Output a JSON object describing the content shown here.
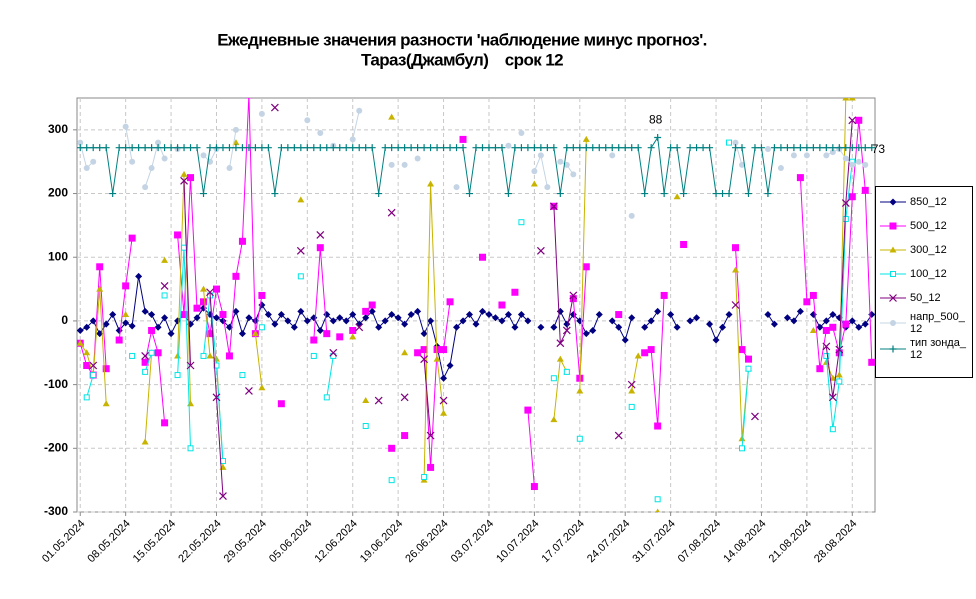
{
  "chart_data": {
    "type": "line",
    "title": "Ежедневные значения разности 'наблюдение минус прогноз'.",
    "subtitle": "Тараз(Джамбул)    срок 12",
    "categories": [
      "01.05.2024",
      null,
      null,
      null,
      null,
      null,
      null,
      "08.05.2024",
      null,
      null,
      null,
      null,
      null,
      null,
      "15.05.2024",
      null,
      null,
      null,
      null,
      null,
      null,
      "22.05.2024",
      null,
      null,
      null,
      null,
      null,
      null,
      "29.05.2024",
      null,
      null,
      null,
      null,
      null,
      null,
      "05.06.2024",
      null,
      null,
      null,
      null,
      null,
      null,
      "12.06.2024",
      null,
      null,
      null,
      null,
      null,
      null,
      "19.06.2024",
      null,
      null,
      null,
      null,
      null,
      null,
      "26.06.2024",
      null,
      null,
      null,
      null,
      null,
      null,
      "03.07.2024",
      null,
      null,
      null,
      null,
      null,
      null,
      "10.07.2024",
      null,
      null,
      null,
      null,
      null,
      null,
      "17.07.2024",
      null,
      null,
      null,
      null,
      null,
      null,
      "24.07.2024",
      null,
      null,
      null,
      null,
      null,
      null,
      "31.07.2024",
      null,
      null,
      null,
      null,
      null,
      null,
      "07.08.2024",
      null,
      null,
      null,
      null,
      null,
      null,
      "14.08.2024",
      null,
      null,
      null,
      null,
      null,
      null,
      "21.08.2024",
      null,
      null,
      null,
      null,
      null,
      null,
      "28.08.2024",
      null,
      null,
      null
    ],
    "ylim": [
      -300,
      350
    ],
    "yticks": [
      -300,
      -200,
      -100,
      0,
      100,
      200,
      300
    ],
    "grid": true,
    "annotations": [
      "88",
      "73"
    ],
    "series": [
      {
        "name": "850_12",
        "color": "#000080",
        "marker": "diamond",
        "values": [
          -15,
          -10,
          0,
          -20,
          -5,
          10,
          -15,
          -3,
          -8,
          70,
          15,
          10,
          -10,
          5,
          -20,
          0,
          10,
          -5,
          5,
          20,
          10,
          5,
          0,
          -10,
          15,
          -20,
          5,
          0,
          25,
          10,
          -5,
          10,
          0,
          -10,
          15,
          0,
          5,
          -15,
          10,
          0,
          5,
          0,
          10,
          -5,
          5,
          15,
          -10,
          0,
          10,
          5,
          -5,
          10,
          15,
          -20,
          0,
          -40,
          -90,
          -70,
          -10,
          0,
          10,
          -5,
          15,
          10,
          5,
          0,
          10,
          -10,
          10,
          0,
          null,
          -10,
          null,
          -10,
          15,
          -5,
          10,
          0,
          -20,
          -15,
          10,
          null,
          0,
          -10,
          -30,
          5,
          null,
          -10,
          0,
          15,
          null,
          10,
          -10,
          null,
          0,
          5,
          null,
          -5,
          -30,
          -10,
          10,
          null,
          null,
          null,
          null,
          null,
          10,
          -5,
          null,
          5,
          0,
          15,
          null,
          10,
          -10,
          0,
          10,
          5,
          -10,
          0,
          -10,
          -5,
          10
        ]
      },
      {
        "name": "500_12",
        "color": "#FF00FF",
        "marker": "square",
        "values": [
          -35,
          -70,
          -85,
          85,
          -75,
          null,
          -30,
          55,
          130,
          null,
          -65,
          -15,
          -50,
          -160,
          null,
          135,
          10,
          225,
          20,
          30,
          -20,
          50,
          10,
          -55,
          70,
          125,
          355,
          -20,
          40,
          null,
          null,
          -130,
          null,
          null,
          null,
          null,
          -30,
          115,
          -20,
          null,
          -25,
          null,
          -15,
          null,
          15,
          25,
          null,
          null,
          -200,
          null,
          -180,
          null,
          -50,
          -45,
          -230,
          -45,
          -45,
          30,
          null,
          285,
          null,
          null,
          100,
          null,
          null,
          25,
          null,
          45,
          null,
          -140,
          -260,
          null,
          null,
          180,
          null,
          null,
          35,
          -90,
          85,
          null,
          null,
          null,
          null,
          10,
          null,
          null,
          null,
          -50,
          -45,
          -165,
          40,
          null,
          null,
          120,
          null,
          null,
          null,
          null,
          null,
          null,
          null,
          115,
          -45,
          -60,
          null,
          null,
          null,
          null,
          null,
          null,
          null,
          225,
          30,
          40,
          -75,
          -15,
          -10,
          -50,
          -5,
          195,
          315,
          205,
          -65
        ]
      },
      {
        "name": "300_12",
        "color": "#C8B400",
        "marker": "triangle",
        "values": [
          -35,
          -50,
          -85,
          50,
          -130,
          null,
          null,
          10,
          null,
          null,
          -190,
          -50,
          null,
          95,
          null,
          -55,
          230,
          -130,
          null,
          50,
          -55,
          -60,
          -230,
          null,
          280,
          null,
          null,
          -20,
          -105,
          null,
          null,
          null,
          null,
          null,
          190,
          null,
          null,
          null,
          null,
          null,
          null,
          null,
          -25,
          null,
          -125,
          null,
          null,
          null,
          320,
          null,
          -50,
          null,
          null,
          -250,
          215,
          -60,
          -145,
          null,
          null,
          null,
          null,
          null,
          null,
          null,
          null,
          null,
          null,
          null,
          null,
          null,
          215,
          null,
          null,
          -155,
          -60,
          -80,
          null,
          -110,
          285,
          null,
          null,
          null,
          null,
          null,
          null,
          -110,
          -55,
          null,
          null,
          -300,
          null,
          null,
          195,
          null,
          null,
          null,
          null,
          null,
          null,
          null,
          null,
          80,
          -185,
          -75,
          null,
          null,
          null,
          null,
          null,
          null,
          null,
          null,
          null,
          -15,
          null,
          -65,
          -90,
          -85,
          350,
          350,
          null,
          null,
          null
        ]
      },
      {
        "name": "100_12",
        "color": "#00E5E5",
        "marker": "square-open",
        "values": [
          null,
          -120,
          -85,
          null,
          null,
          null,
          null,
          null,
          -55,
          null,
          -80,
          -50,
          null,
          40,
          null,
          -85,
          115,
          -200,
          null,
          -55,
          40,
          -70,
          -220,
          null,
          null,
          -85,
          null,
          null,
          -10,
          null,
          null,
          null,
          null,
          null,
          70,
          null,
          -55,
          null,
          -120,
          -55,
          null,
          null,
          null,
          null,
          -165,
          null,
          null,
          null,
          -250,
          null,
          null,
          null,
          null,
          -245,
          null,
          null,
          null,
          null,
          null,
          null,
          null,
          null,
          null,
          null,
          null,
          null,
          null,
          null,
          155,
          null,
          null,
          null,
          null,
          -90,
          null,
          -80,
          null,
          -185,
          null,
          null,
          null,
          null,
          null,
          null,
          null,
          -135,
          null,
          null,
          null,
          -280,
          null,
          null,
          null,
          null,
          null,
          null,
          null,
          null,
          null,
          null,
          280,
          null,
          -200,
          -75,
          null,
          null,
          null,
          null,
          null,
          null,
          null,
          null,
          null,
          null,
          null,
          -55,
          -170,
          -95,
          160,
          250,
          null,
          null,
          null
        ]
      },
      {
        "name": "50_12",
        "color": "#800080",
        "marker": "x",
        "values": [
          null,
          null,
          -70,
          null,
          null,
          null,
          null,
          null,
          null,
          null,
          -55,
          null,
          null,
          55,
          null,
          null,
          220,
          -70,
          null,
          null,
          45,
          -120,
          -275,
          null,
          null,
          null,
          -110,
          null,
          null,
          null,
          335,
          null,
          null,
          null,
          110,
          null,
          null,
          135,
          null,
          -50,
          null,
          null,
          null,
          -10,
          null,
          null,
          -125,
          null,
          170,
          null,
          -120,
          null,
          null,
          -60,
          -180,
          null,
          -125,
          null,
          null,
          null,
          null,
          null,
          null,
          null,
          null,
          null,
          null,
          null,
          null,
          null,
          null,
          110,
          null,
          180,
          -35,
          -15,
          40,
          null,
          null,
          null,
          null,
          null,
          null,
          -180,
          null,
          -100,
          null,
          null,
          null,
          null,
          null,
          null,
          null,
          null,
          null,
          null,
          null,
          null,
          null,
          null,
          null,
          25,
          null,
          null,
          -150,
          null,
          null,
          null,
          null,
          null,
          null,
          null,
          null,
          null,
          null,
          -40,
          -120,
          -45,
          185,
          315,
          null,
          null,
          null
        ]
      },
      {
        "name": "напр_500_12",
        "color": "#C4D4E4",
        "marker": "circle",
        "values": [
          280,
          240,
          250,
          null,
          null,
          null,
          null,
          305,
          250,
          null,
          210,
          240,
          280,
          255,
          null,
          270,
          null,
          null,
          null,
          260,
          250,
          270,
          null,
          240,
          300,
          null,
          null,
          null,
          325,
          null,
          null,
          null,
          null,
          null,
          null,
          315,
          null,
          295,
          null,
          275,
          null,
          null,
          285,
          330,
          null,
          null,
          null,
          null,
          245,
          null,
          245,
          null,
          255,
          null,
          null,
          null,
          null,
          null,
          210,
          null,
          null,
          null,
          null,
          null,
          null,
          null,
          275,
          null,
          295,
          null,
          235,
          260,
          210,
          null,
          250,
          245,
          230,
          null,
          null,
          null,
          null,
          null,
          260,
          null,
          null,
          165,
          null,
          null,
          null,
          null,
          null,
          null,
          null,
          null,
          null,
          null,
          null,
          null,
          null,
          null,
          null,
          280,
          245,
          null,
          null,
          null,
          270,
          null,
          240,
          null,
          260,
          null,
          260,
          null,
          null,
          260,
          265,
          270,
          255,
          245,
          250,
          245,
          null
        ]
      },
      {
        "name": "тип зонда_12",
        "color": "#008080",
        "marker": "plus",
        "values": [
          272,
          272,
          272,
          272,
          272,
          200,
          272,
          272,
          272,
          272,
          272,
          272,
          272,
          272,
          272,
          272,
          272,
          272,
          272,
          200,
          272,
          272,
          272,
          272,
          272,
          272,
          272,
          272,
          272,
          272,
          200,
          272,
          272,
          272,
          272,
          272,
          272,
          272,
          272,
          272,
          272,
          272,
          272,
          272,
          272,
          272,
          200,
          272,
          272,
          272,
          272,
          272,
          272,
          272,
          272,
          272,
          272,
          272,
          272,
          272,
          200,
          272,
          272,
          272,
          272,
          272,
          200,
          272,
          272,
          272,
          272,
          272,
          272,
          272,
          200,
          272,
          272,
          272,
          272,
          272,
          272,
          272,
          272,
          272,
          272,
          272,
          272,
          200,
          272,
          288,
          200,
          272,
          272,
          200,
          272,
          272,
          272,
          272,
          200,
          200,
          200,
          272,
          272,
          200,
          272,
          272,
          200,
          272,
          272,
          272,
          272,
          272,
          272,
          272,
          272,
          272,
          272,
          272,
          272,
          272,
          272,
          272,
          272
        ]
      }
    ]
  }
}
